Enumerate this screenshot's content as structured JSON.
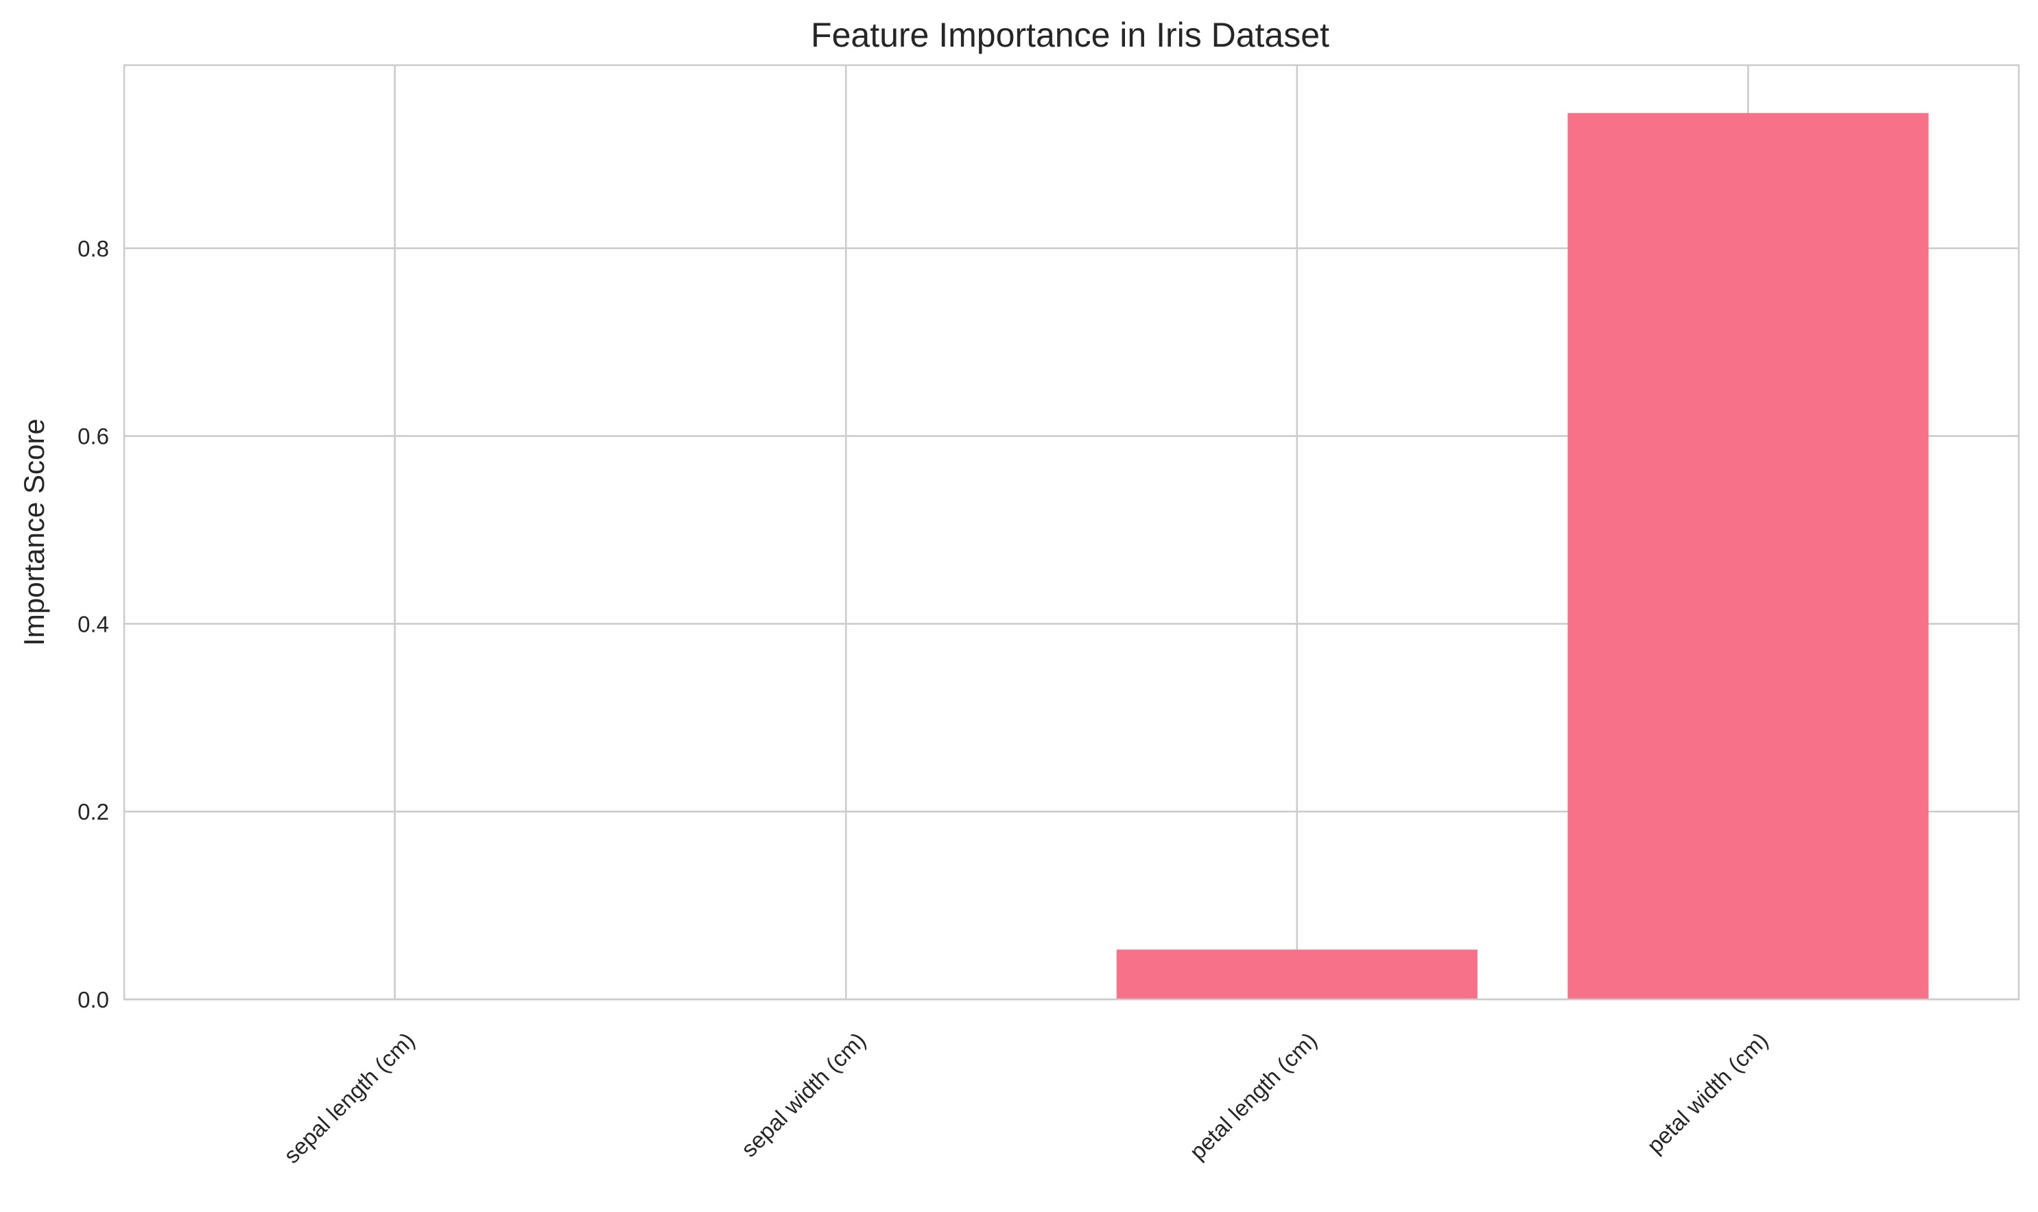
{
  "chart_data": {
    "type": "bar",
    "title": "Feature Importance in Iris Dataset",
    "xlabel": "",
    "ylabel": "Importance Score",
    "categories": [
      "sepal length (cm)",
      "sepal width (cm)",
      "petal length (cm)",
      "petal width (cm)"
    ],
    "values": [
      0.0,
      0.0,
      0.053,
      0.944
    ],
    "ylim": [
      0,
      0.995
    ],
    "yticks": [
      0.0,
      0.2,
      0.4,
      0.6,
      0.8
    ],
    "ytick_labels": [
      "0.0",
      "0.2",
      "0.4",
      "0.6",
      "0.8"
    ],
    "grid": true,
    "bar_color": "#f77189",
    "xtick_rotation": 45
  }
}
